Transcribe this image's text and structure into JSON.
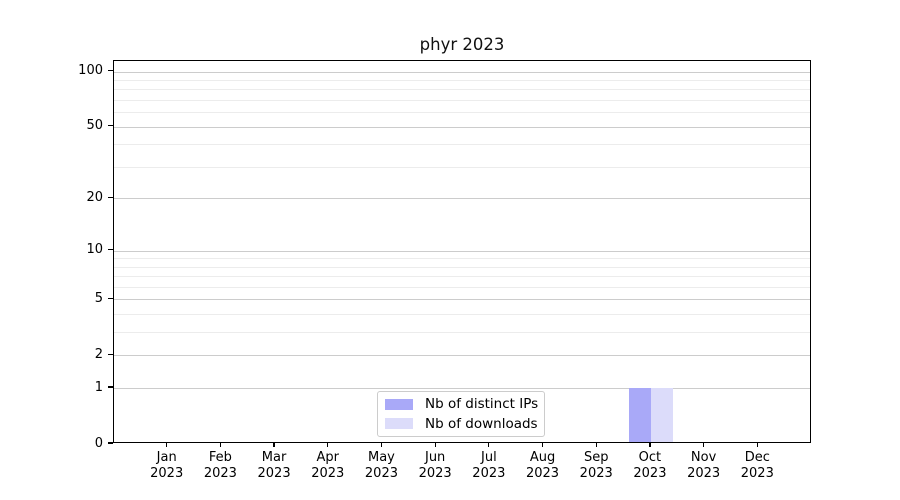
{
  "chart_data": {
    "type": "bar",
    "title": "phyr 2023",
    "categories": [
      "Jan 2023",
      "Feb 2023",
      "Mar 2023",
      "Apr 2023",
      "May 2023",
      "Jun 2023",
      "Jul 2023",
      "Aug 2023",
      "Sep 2023",
      "Oct 2023",
      "Nov 2023",
      "Dec 2023"
    ],
    "series": [
      {
        "name": "Nb of distinct IPs",
        "color": "#a9a9f8",
        "values": [
          0,
          0,
          0,
          0,
          0,
          0,
          0,
          0,
          0,
          1,
          0,
          0
        ]
      },
      {
        "name": "Nb of downloads",
        "color": "#dcdcfa",
        "values": [
          0,
          0,
          0,
          0,
          0,
          0,
          0,
          0,
          0,
          1,
          0,
          0
        ]
      }
    ],
    "xlabel": "",
    "ylabel": "",
    "yscale": "log1p",
    "ylim": [
      0,
      114
    ],
    "yticks": [
      0,
      1,
      2,
      5,
      10,
      20,
      50,
      100
    ],
    "minor_gridlines": [
      3,
      4,
      6,
      7,
      8,
      9,
      30,
      40,
      60,
      70,
      80,
      90
    ],
    "grid": "horizontal",
    "legend_position": "lower-center-inside"
  }
}
